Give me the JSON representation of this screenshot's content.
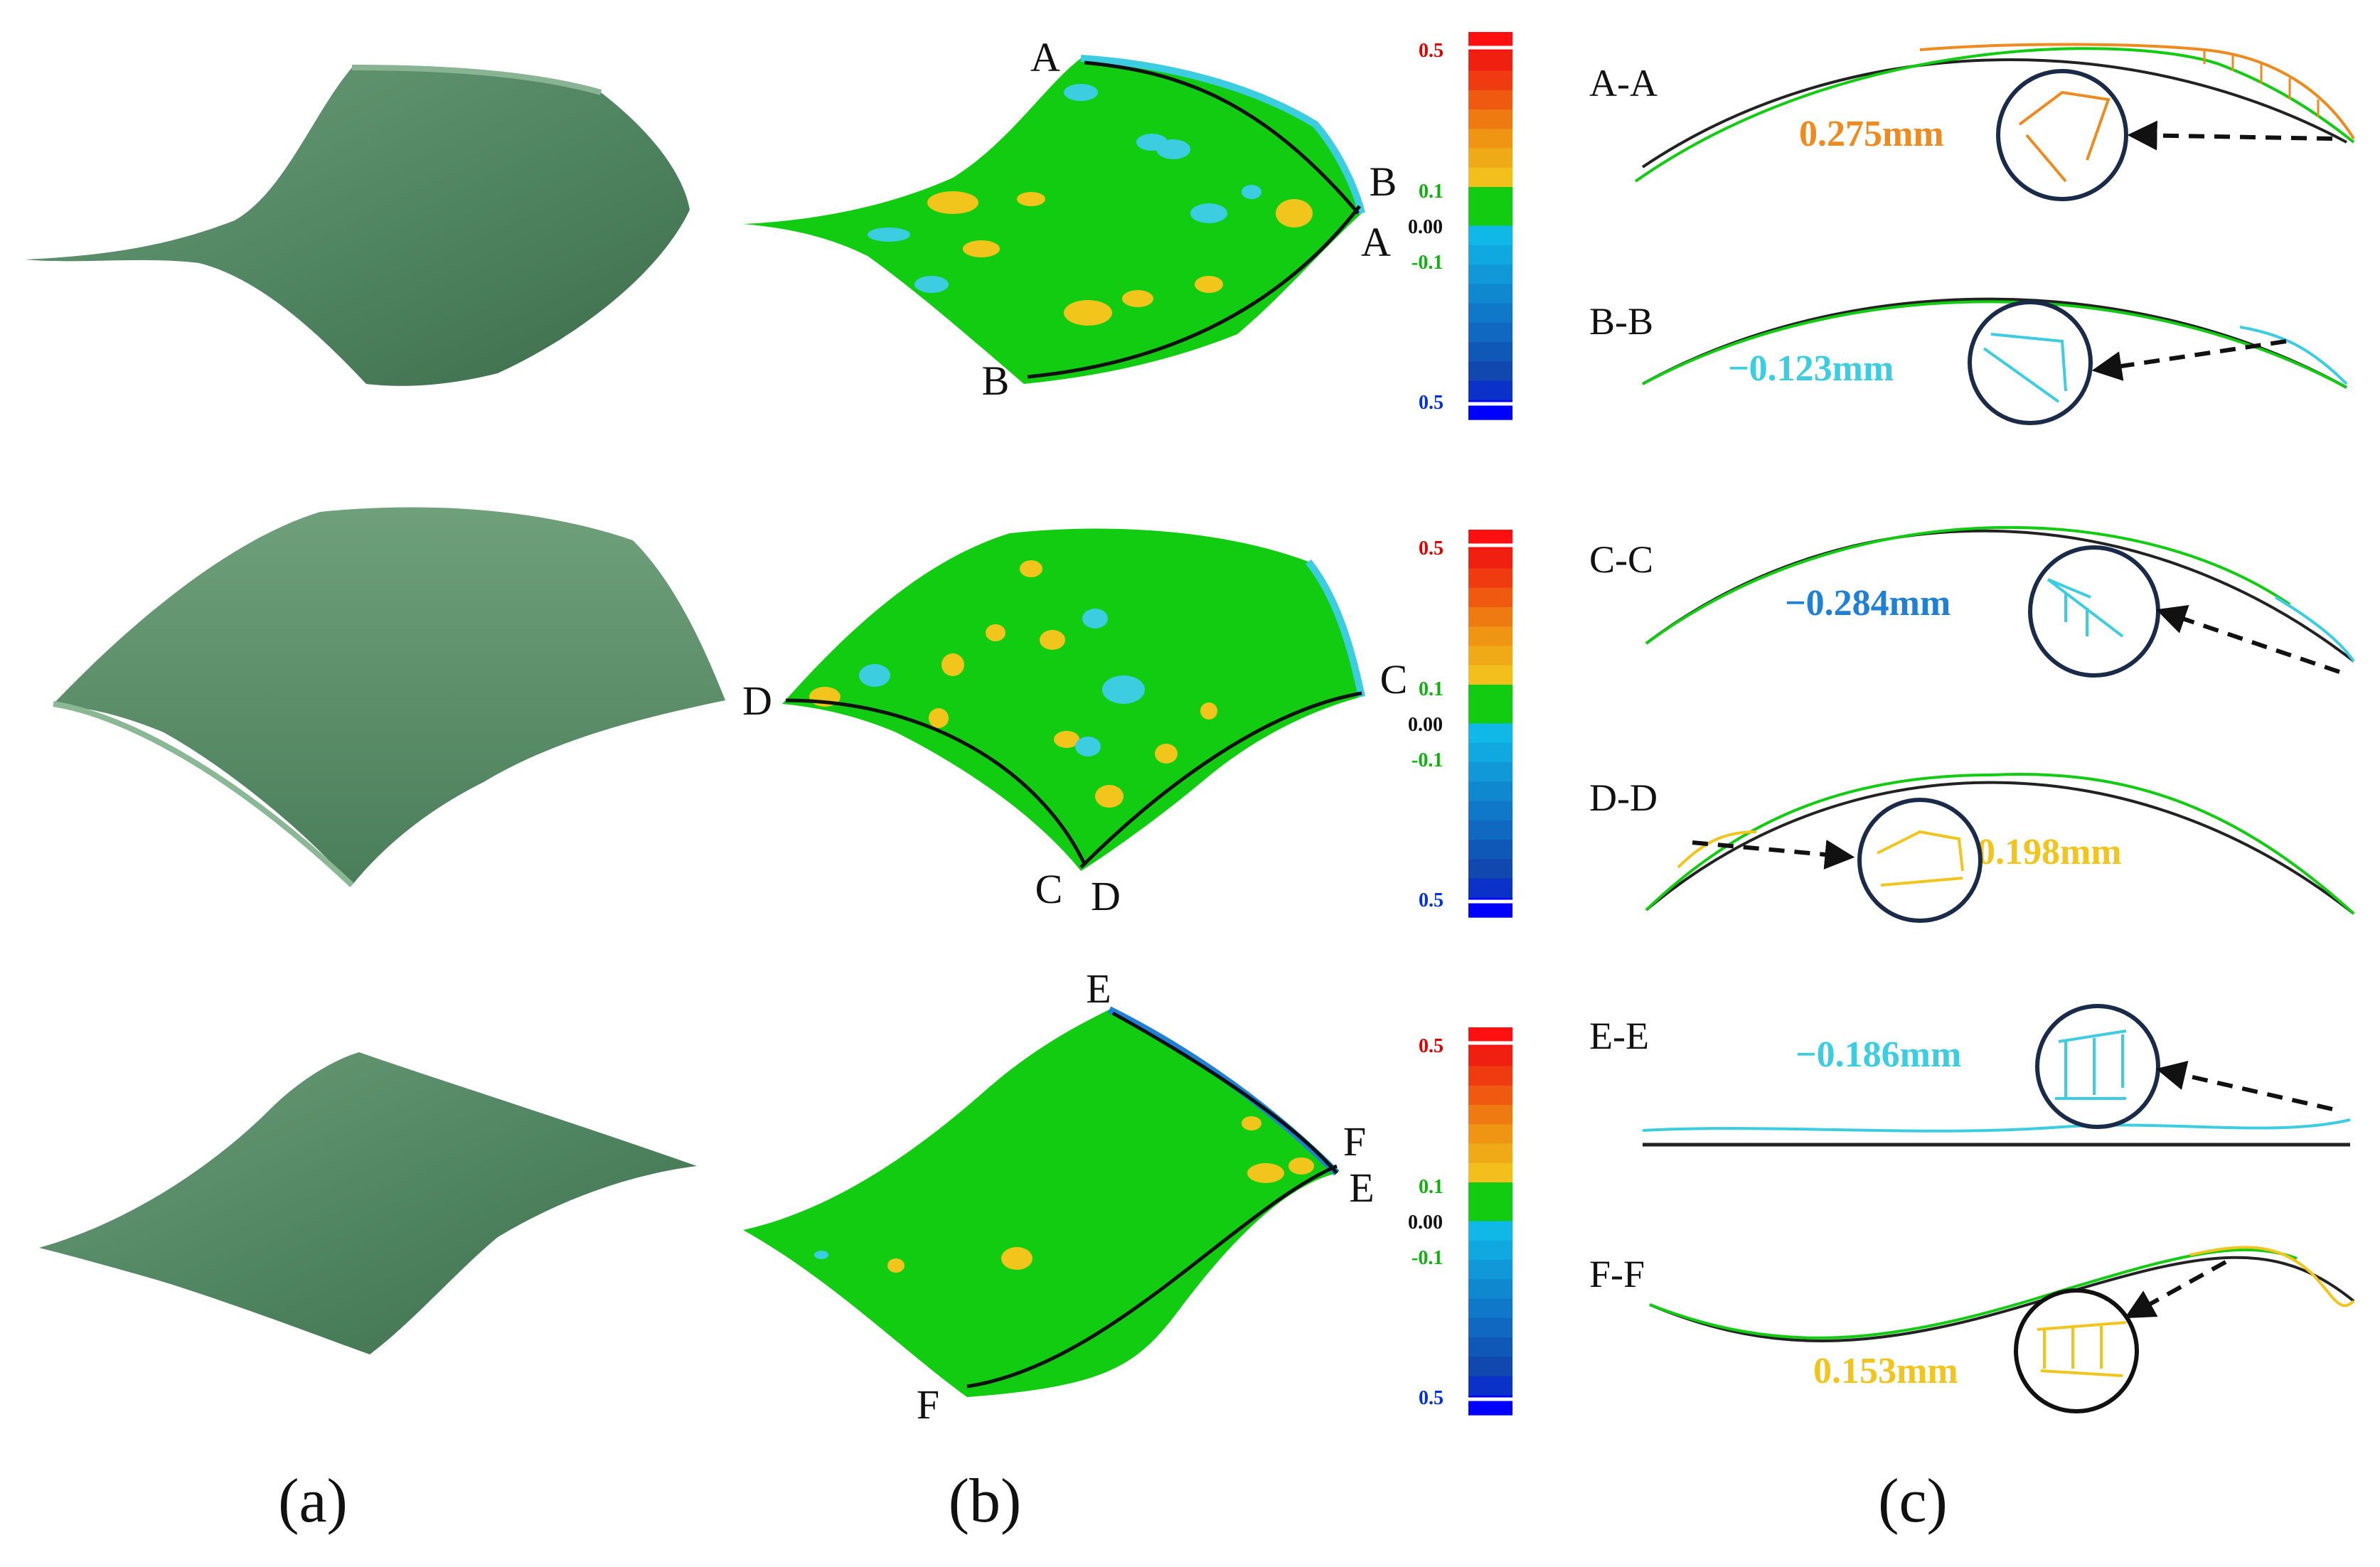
{
  "panels": {
    "a": {
      "label": "(a)"
    },
    "b": {
      "label": "(b)"
    },
    "c": {
      "label": "(c)"
    }
  },
  "colors": {
    "surface_scan": "#5c8f6a",
    "surface_scan_dark": "#3f6e4c",
    "deviation_green": "#12cc12",
    "deviation_yellow": "#f2c51c",
    "deviation_cyan": "#3ccde0",
    "deviation_blue": "#1f80d6",
    "deviation_orange": "#ee8a1e",
    "section_line": "#111111"
  },
  "rows": [
    {
      "id": "row1",
      "corner_labels": [
        "A",
        "B",
        "A",
        "B"
      ],
      "colorbar": {
        "top": "0.5",
        "upper_tol": "0.1",
        "zero": "0.00",
        "lower_tol": "-0.1",
        "bottom": "0.5"
      },
      "sections": [
        {
          "title": "A-A",
          "value": "0.275mm",
          "color": "#ee8a1e"
        },
        {
          "title": "B-B",
          "value": "−0.123mm",
          "color": "#3ccde0"
        }
      ]
    },
    {
      "id": "row2",
      "corner_labels": [
        "D",
        "C",
        "C",
        "D"
      ],
      "colorbar": {
        "top": "0.5",
        "upper_tol": "0.1",
        "zero": "0.00",
        "lower_tol": "-0.1",
        "bottom": "0.5"
      },
      "sections": [
        {
          "title": "C-C",
          "value": "−0.284mm",
          "color": "#1f80d6"
        },
        {
          "title": "D-D",
          "value": "0.198mm",
          "color": "#f2c51c"
        }
      ]
    },
    {
      "id": "row3",
      "corner_labels": [
        "E",
        "F",
        "E",
        "F"
      ],
      "colorbar": {
        "top": "0.5",
        "upper_tol": "0.1",
        "zero": "0.00",
        "lower_tol": "-0.1",
        "bottom": "0.5"
      },
      "sections": [
        {
          "title": "E-E",
          "value": "−0.186mm",
          "color": "#3ccde0"
        },
        {
          "title": "F-F",
          "value": "0.153mm",
          "color": "#f2c51c"
        }
      ]
    }
  ]
}
